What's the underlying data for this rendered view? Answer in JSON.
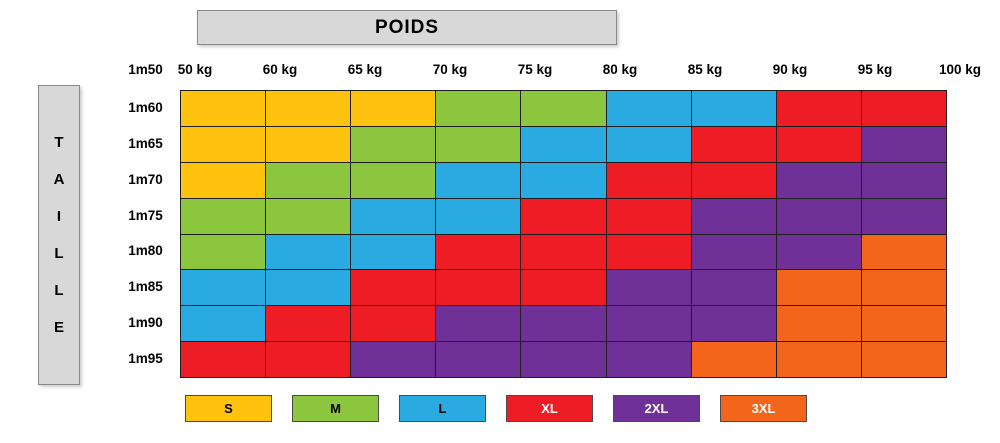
{
  "title": "POIDS",
  "axis_box": {
    "taille_letters": [
      "T",
      "A",
      "I",
      "L",
      "L",
      "E"
    ]
  },
  "sizes": {
    "S": {
      "color": "#ffc20e",
      "label_color": "#000000"
    },
    "M": {
      "color": "#8cc63f",
      "label_color": "#000000"
    },
    "L": {
      "color": "#29abe2",
      "label_color": "#000000"
    },
    "XL": {
      "color": "#ee1c25",
      "label_color": "#ffffff"
    },
    "2XL": {
      "color": "#6f3198",
      "label_color": "#ffffff"
    },
    "3XL": {
      "color": "#f4651c",
      "label_color": "#ffffff"
    }
  },
  "chart_data": {
    "type": "heatmap",
    "title": "POIDS",
    "x_axis_title": "POIDS",
    "y_axis_title": "TAILLE",
    "corner_label": "1m50",
    "x_boundary_labels": [
      "50 kg",
      "60 kg",
      "65 kg",
      "70 kg",
      "75 kg",
      "80 kg",
      "85 kg",
      "90 kg",
      "95 kg",
      "100 kg"
    ],
    "y_boundary_labels": [
      "1m50",
      "1m60",
      "1m65",
      "1m70",
      "1m75",
      "1m80",
      "1m85",
      "1m90",
      "1m95"
    ],
    "row_labels": [
      "1m60",
      "1m65",
      "1m70",
      "1m75",
      "1m80",
      "1m85",
      "1m90",
      "1m95"
    ],
    "cells": [
      [
        "S",
        "S",
        "S",
        "M",
        "M",
        "L",
        "L",
        "XL",
        "XL"
      ],
      [
        "S",
        "S",
        "M",
        "M",
        "L",
        "L",
        "XL",
        "XL",
        "2XL"
      ],
      [
        "S",
        "M",
        "M",
        "L",
        "L",
        "XL",
        "XL",
        "2XL",
        "2XL"
      ],
      [
        "M",
        "M",
        "L",
        "L",
        "XL",
        "XL",
        "2XL",
        "2XL",
        "2XL"
      ],
      [
        "M",
        "L",
        "L",
        "XL",
        "XL",
        "XL",
        "2XL",
        "2XL",
        "3XL"
      ],
      [
        "L",
        "L",
        "XL",
        "XL",
        "XL",
        "2XL",
        "2XL",
        "3XL",
        "3XL"
      ],
      [
        "L",
        "XL",
        "XL",
        "2XL",
        "2XL",
        "2XL",
        "2XL",
        "3XL",
        "3XL"
      ],
      [
        "XL",
        "XL",
        "2XL",
        "2XL",
        "2XL",
        "2XL",
        "3XL",
        "3XL",
        "3XL"
      ]
    ],
    "legend_entries": [
      "S",
      "M",
      "L",
      "XL",
      "2XL",
      "3XL"
    ]
  }
}
